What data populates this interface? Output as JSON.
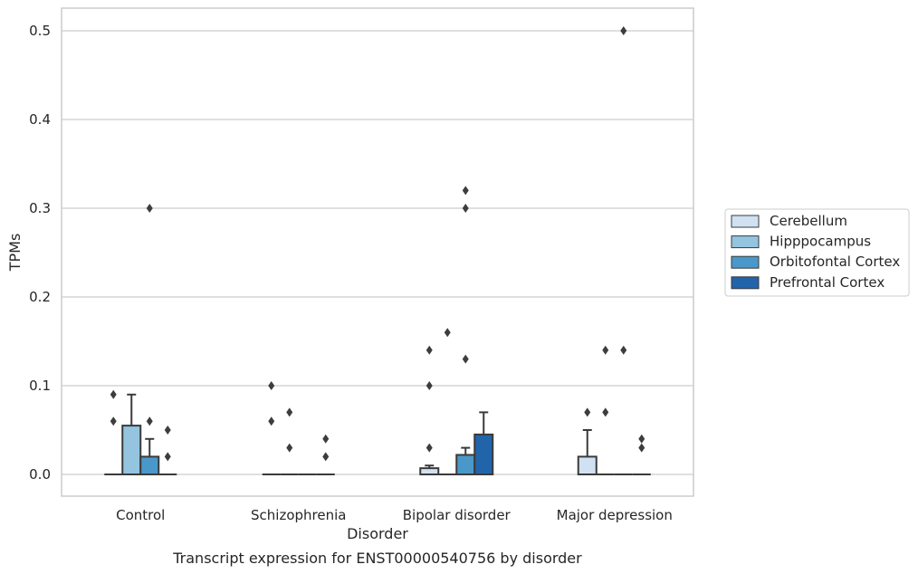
{
  "caption": "Transcript expression for ENST00000540756 by disorder",
  "chart_data": {
    "type": "box",
    "xlabel": "Disorder",
    "ylabel": "TPMs",
    "ylim": [
      -0.025,
      0.525
    ],
    "yticks": [
      "0.0",
      "0.1",
      "0.2",
      "0.3",
      "0.4",
      "0.5"
    ],
    "ytick_values": [
      0.0,
      0.1,
      0.2,
      0.3,
      0.4,
      0.5
    ],
    "grid": "horizontal",
    "legend_position": "right",
    "categories": [
      "Control",
      "Schizophrenia",
      "Bipolar disorder",
      "Major depression"
    ],
    "series": [
      {
        "name": "Cerebellum",
        "color": "#d0e1f2",
        "boxes": [
          {
            "q1": 0,
            "median": 0,
            "q3": 0,
            "whislo": 0,
            "whishi": 0,
            "fliers": [
              0.06,
              0.09
            ]
          },
          {
            "q1": 0,
            "median": 0,
            "q3": 0,
            "whislo": 0,
            "whishi": 0,
            "fliers": [
              0.06,
              0.1
            ]
          },
          {
            "q1": 0,
            "median": 0,
            "q3": 0.007,
            "whislo": 0,
            "whishi": 0.01,
            "fliers": [
              0.03,
              0.1,
              0.14
            ]
          },
          {
            "q1": 0,
            "median": 0,
            "q3": 0.02,
            "whislo": 0,
            "whishi": 0.05,
            "fliers": [
              0.07
            ]
          }
        ]
      },
      {
        "name": "Hipppocampus",
        "color": "#94c4df",
        "boxes": [
          {
            "q1": 0,
            "median": 0,
            "q3": 0.055,
            "whislo": 0,
            "whishi": 0.09,
            "fliers": []
          },
          {
            "q1": 0,
            "median": 0,
            "q3": 0,
            "whislo": 0,
            "whishi": 0,
            "fliers": [
              0.03,
              0.07
            ]
          },
          {
            "q1": 0,
            "median": 0,
            "q3": 0,
            "whislo": 0,
            "whishi": 0,
            "fliers": [
              0.16
            ]
          },
          {
            "q1": 0,
            "median": 0,
            "q3": 0,
            "whislo": 0,
            "whishi": 0,
            "fliers": [
              0.07,
              0.14
            ]
          }
        ]
      },
      {
        "name": "Orbitofontal Cortex",
        "color": "#4a98c9",
        "boxes": [
          {
            "q1": 0,
            "median": 0,
            "q3": 0.02,
            "whislo": 0,
            "whishi": 0.04,
            "fliers": [
              0.06,
              0.3
            ]
          },
          {
            "q1": 0,
            "median": 0,
            "q3": 0,
            "whislo": 0,
            "whishi": 0,
            "fliers": []
          },
          {
            "q1": 0,
            "median": 0,
            "q3": 0.022,
            "whislo": 0,
            "whishi": 0.03,
            "fliers": [
              0.13,
              0.3,
              0.32
            ]
          },
          {
            "q1": 0,
            "median": 0,
            "q3": 0,
            "whislo": 0,
            "whishi": 0,
            "fliers": [
              0.14,
              0.5
            ]
          }
        ]
      },
      {
        "name": "Prefrontal Cortex",
        "color": "#2264aa",
        "boxes": [
          {
            "q1": 0,
            "median": 0,
            "q3": 0,
            "whislo": 0,
            "whishi": 0,
            "fliers": [
              0.02,
              0.05
            ]
          },
          {
            "q1": 0,
            "median": 0,
            "q3": 0,
            "whislo": 0,
            "whishi": 0,
            "fliers": [
              0.02,
              0.04
            ]
          },
          {
            "q1": 0,
            "median": 0,
            "q3": 0.045,
            "whislo": 0,
            "whishi": 0.07,
            "fliers": []
          },
          {
            "q1": 0,
            "median": 0,
            "q3": 0,
            "whislo": 0,
            "whishi": 0,
            "fliers": [
              0.03,
              0.04
            ]
          }
        ]
      }
    ]
  }
}
